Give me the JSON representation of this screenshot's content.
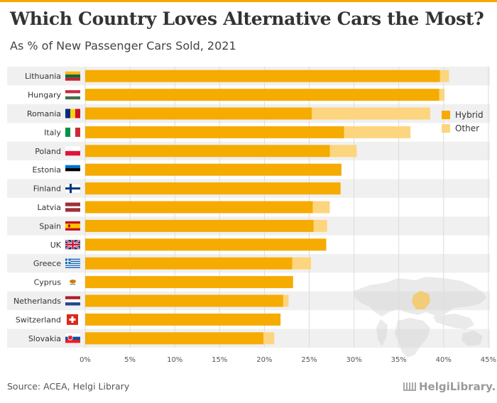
{
  "header": {
    "title": "Which Country Loves Alternative Cars the Most?",
    "subtitle": "As % of New Passenger Cars Sold, 2021"
  },
  "footer": {
    "source": "Source: ACEA, Helgi Library",
    "brand": "HelgiLibrary."
  },
  "colors": {
    "hybrid": "#f5ab00",
    "other": "#fdd57e",
    "band": "#f0f0f0",
    "grid": "#dcdcdc"
  },
  "chart_data": {
    "type": "bar",
    "orientation": "horizontal",
    "stacked": true,
    "categories": [
      "Lithuania",
      "Hungary",
      "Romania",
      "Italy",
      "Poland",
      "Estonia",
      "Finland",
      "Latvia",
      "Spain",
      "UK",
      "Greece",
      "Cyprus",
      "Netherlands",
      "Switzerland",
      "Slovakia"
    ],
    "series": [
      {
        "name": "Hybrid",
        "values": [
          39.6,
          39.5,
          25.3,
          28.9,
          27.3,
          28.6,
          28.5,
          25.4,
          25.5,
          26.9,
          23.1,
          23.2,
          22.1,
          21.8,
          19.9
        ]
      },
      {
        "name": "Other",
        "values": [
          1.0,
          0.6,
          13.2,
          7.4,
          3.0,
          0.0,
          0.0,
          1.9,
          1.5,
          0.0,
          2.1,
          0.0,
          0.6,
          0.0,
          1.2
        ]
      }
    ],
    "xlim": [
      0,
      45
    ],
    "xticks": [
      "0%",
      "5%",
      "10%",
      "15%",
      "20%",
      "25%",
      "30%",
      "35%",
      "40%",
      "45%"
    ],
    "legend_position": "right",
    "grid": true
  }
}
